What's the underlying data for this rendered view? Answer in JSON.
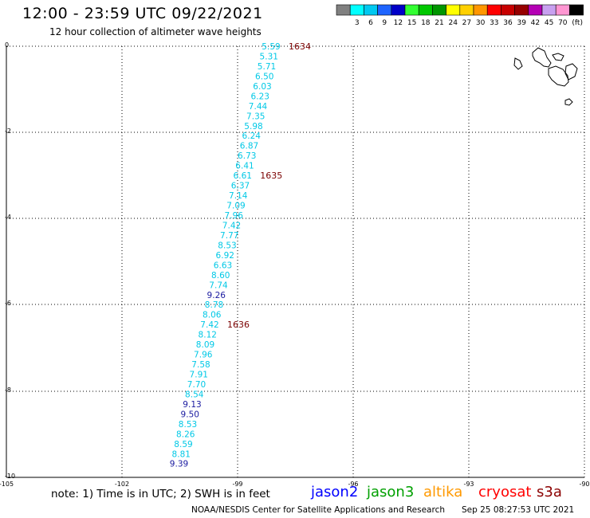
{
  "title": "12:00 - 23:59 UTC 09/22/2021",
  "subtitle": "12 hour collection of altimeter wave heights",
  "legend": {
    "unit": "(ft)",
    "swatches": [
      {
        "label": "",
        "color": "#808080"
      },
      {
        "label": "3",
        "color": "#00ffff"
      },
      {
        "label": "6",
        "color": "#00c8f0"
      },
      {
        "label": "9",
        "color": "#1e64ff"
      },
      {
        "label": "12",
        "color": "#0000c8"
      },
      {
        "label": "15",
        "color": "#32ff32"
      },
      {
        "label": "18",
        "color": "#00c800"
      },
      {
        "label": "21",
        "color": "#009600"
      },
      {
        "label": "24",
        "color": "#ffff00"
      },
      {
        "label": "27",
        "color": "#ffd000"
      },
      {
        "label": "30",
        "color": "#ff9600"
      },
      {
        "label": "33",
        "color": "#ff0000"
      },
      {
        "label": "36",
        "color": "#c80000"
      },
      {
        "label": "39",
        "color": "#960000"
      },
      {
        "label": "42",
        "color": "#b400b4"
      },
      {
        "label": "45",
        "color": "#c8a0f0"
      },
      {
        "label": "70",
        "color": "#ff96d2"
      },
      {
        "label": "",
        "color": "#000000"
      }
    ]
  },
  "axes": {
    "lon_labels": [
      "-105",
      "-102",
      "-99",
      "-96",
      "-93",
      "-90"
    ],
    "lat_labels": [
      "0",
      "-2",
      "-4",
      "-6",
      "-8",
      "-10"
    ]
  },
  "note": "note: 1) Time is in UTC; 2) SWH is in feet",
  "satellites": [
    {
      "name": "jason2",
      "color": "#0000ff"
    },
    {
      "name": "jason3",
      "color": "#00a000"
    },
    {
      "name": "altika",
      "color": "#ff9900"
    },
    {
      "name": "cryosat",
      "color": "#ff0000"
    },
    {
      "name": "s3a",
      "color": "#8b0000"
    }
  ],
  "footer": "NOAA/NESDIS Center for Satellite Applications and Research",
  "footer_time": "Sep 25 08:27:53 UTC 2021",
  "track": {
    "times": [
      {
        "label": "1634",
        "color": "#7a0000"
      },
      {
        "label": "1635",
        "color": "#7a0000"
      },
      {
        "label": "1636",
        "color": "#7a0000"
      }
    ],
    "points": [
      {
        "v": "5.59",
        "color": "#00c8e6"
      },
      {
        "v": "5.31",
        "color": "#00c8e6"
      },
      {
        "v": "5.71",
        "color": "#00c8e6"
      },
      {
        "v": "6.50",
        "color": "#00c8e6"
      },
      {
        "v": "6.03",
        "color": "#00c8e6"
      },
      {
        "v": "6.23",
        "color": "#00c8e6"
      },
      {
        "v": "7.44",
        "color": "#00c8e6"
      },
      {
        "v": "7.35",
        "color": "#00c8e6"
      },
      {
        "v": "5.98",
        "color": "#00c8e6"
      },
      {
        "v": "6.24",
        "color": "#00c8e6"
      },
      {
        "v": "6.87",
        "color": "#00c8e6"
      },
      {
        "v": "6.73",
        "color": "#00c8e6"
      },
      {
        "v": "6.41",
        "color": "#00c8e6"
      },
      {
        "v": "6.61",
        "color": "#00c8e6"
      },
      {
        "v": "6.37",
        "color": "#00c8e6"
      },
      {
        "v": "7.14",
        "color": "#00c8e6"
      },
      {
        "v": "7.09",
        "color": "#00c8e6"
      },
      {
        "v": "7.96",
        "color": "#00c8e6"
      },
      {
        "v": "7.42",
        "color": "#00c8e6"
      },
      {
        "v": "7.77",
        "color": "#00c8e6"
      },
      {
        "v": "8.53",
        "color": "#00c8e6"
      },
      {
        "v": "6.92",
        "color": "#00c8e6"
      },
      {
        "v": "6.63",
        "color": "#00c8e6"
      },
      {
        "v": "8.60",
        "color": "#00c8e6"
      },
      {
        "v": "7.74",
        "color": "#00c8e6"
      },
      {
        "v": "9.26",
        "color": "#1a1aa0"
      },
      {
        "v": "8.78",
        "color": "#00c8e6"
      },
      {
        "v": "8.06",
        "color": "#00c8e6"
      },
      {
        "v": "7.42",
        "color": "#00c8e6"
      },
      {
        "v": "8.12",
        "color": "#00c8e6"
      },
      {
        "v": "8.09",
        "color": "#00c8e6"
      },
      {
        "v": "7.96",
        "color": "#00c8e6"
      },
      {
        "v": "7.58",
        "color": "#00c8e6"
      },
      {
        "v": "7.91",
        "color": "#00c8e6"
      },
      {
        "v": "7.70",
        "color": "#00c8e6"
      },
      {
        "v": "8.54",
        "color": "#00c8e6"
      },
      {
        "v": "9.13",
        "color": "#1a1aa0"
      },
      {
        "v": "9.50",
        "color": "#1a1aa0"
      },
      {
        "v": "8.53",
        "color": "#00c8e6"
      },
      {
        "v": "8.26",
        "color": "#00c8e6"
      },
      {
        "v": "8.59",
        "color": "#00c8e6"
      },
      {
        "v": "8.81",
        "color": "#00c8e6"
      },
      {
        "v": "9.39",
        "color": "#1a1aa0"
      }
    ]
  }
}
